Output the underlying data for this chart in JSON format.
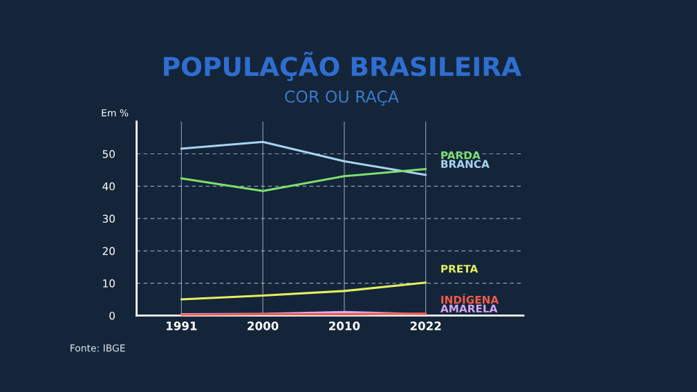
{
  "chart_data": {
    "type": "line",
    "title": "POPULAÇÃO BRASILEIRA",
    "subtitle": "COR OU RAÇA",
    "ylabel": "Em %",
    "categories": [
      "1991",
      "2000",
      "2010",
      "2022"
    ],
    "series": [
      {
        "name": "PARDA",
        "color": "#7ee070",
        "values": [
          42.4,
          38.5,
          43.1,
          45.3
        ]
      },
      {
        "name": "BRANCA",
        "color": "#a8d4f0",
        "values": [
          51.6,
          53.7,
          47.7,
          43.5
        ]
      },
      {
        "name": "PRETA",
        "color": "#e4f060",
        "values": [
          5.0,
          6.2,
          7.6,
          10.2
        ]
      },
      {
        "name": "INDÍGENA",
        "color": "#f05a48",
        "values": [
          0.2,
          0.4,
          0.4,
          0.6
        ]
      },
      {
        "name": "AMARELA",
        "color": "#d8a8f0",
        "values": [
          0.4,
          0.5,
          1.1,
          0.4
        ]
      }
    ],
    "ylim": [
      0,
      60
    ],
    "yticks": [
      0,
      10,
      20,
      30,
      40,
      50
    ],
    "grid": true,
    "legend": false,
    "marker": "none",
    "line_style": "solid",
    "annotations": [
      "Fonte: IBGE"
    ]
  }
}
